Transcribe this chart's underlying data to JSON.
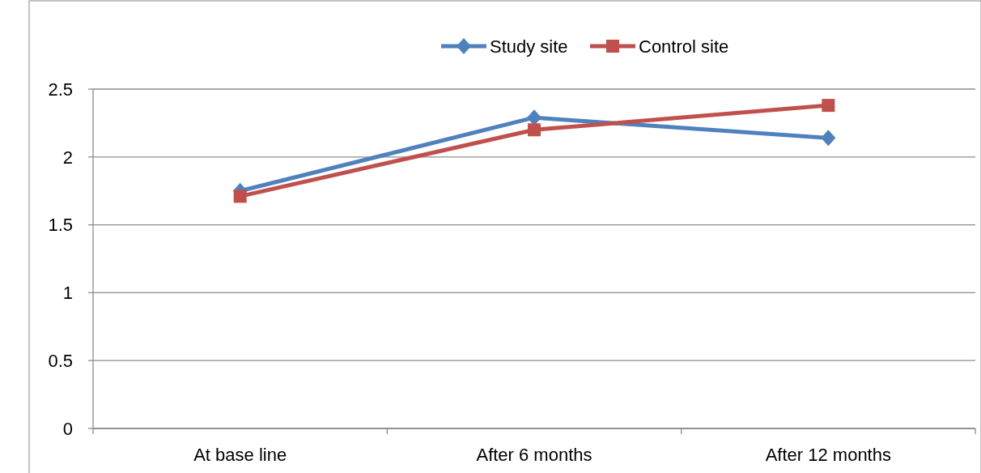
{
  "chart_data": {
    "type": "line",
    "categories": [
      "At base line",
      "After 6 months",
      "After 12 months"
    ],
    "series": [
      {
        "name": "Study site",
        "color": "#4f81bd",
        "values": [
          1.75,
          2.29,
          2.14
        ],
        "marker": "diamond"
      },
      {
        "name": "Control site",
        "color": "#c0504d",
        "values": [
          1.71,
          2.2,
          2.38
        ],
        "marker": "square"
      }
    ],
    "ylim": [
      0,
      2.5
    ],
    "yticks": [
      0,
      0.5,
      1,
      1.5,
      2,
      2.5
    ],
    "grid": "y",
    "legend": "top"
  }
}
